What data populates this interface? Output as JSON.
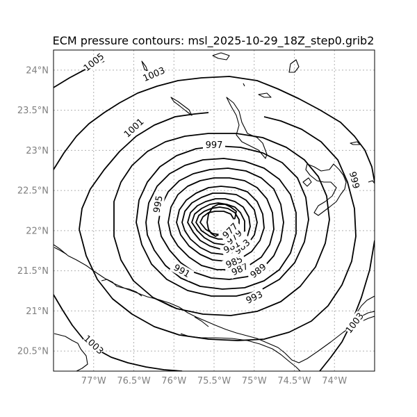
{
  "chart_data": {
    "type": "contour-map",
    "title": "ECM pressure contours: msl_2025-10-29_18Z_step0.grib2",
    "x_axis": {
      "range": [
        -77.5,
        -73.5
      ],
      "ticks": [
        -77,
        -76.5,
        -76,
        -75.5,
        -75,
        -74.5,
        -74
      ],
      "tick_labels": [
        "77°W",
        "76.5°W",
        "76°W",
        "75.5°W",
        "75°W",
        "74.5°W",
        "74°W"
      ]
    },
    "y_axis": {
      "range": [
        20.25,
        24.25
      ],
      "ticks": [
        20.5,
        21,
        21.5,
        22,
        22.5,
        23,
        23.5,
        24
      ],
      "tick_labels": [
        "20.5°N",
        "21°N",
        "21.5°N",
        "22°N",
        "22.5°N",
        "23°N",
        "23.5°N",
        "24°N"
      ]
    },
    "grid": true,
    "line_color": "#000000",
    "grid_color": "#b0b0b0",
    "center": {
      "lon": -75.5,
      "lat": 22.2
    },
    "contours": [
      {
        "level": "1005",
        "labels": [
          {
            "lon": -77.0,
            "lat": 24.1
          }
        ]
      },
      {
        "level": "1003",
        "labels": [
          {
            "lon": -76.25,
            "lat": 23.95
          },
          {
            "lon": -77.0,
            "lat": 20.58
          },
          {
            "lon": -73.75,
            "lat": 20.85
          }
        ]
      },
      {
        "level": "1001",
        "labels": [
          {
            "lon": -76.5,
            "lat": 23.28
          }
        ]
      },
      {
        "level": "999",
        "labels": [
          {
            "lon": -73.75,
            "lat": 22.63
          }
        ]
      },
      {
        "level": "997",
        "labels": [
          {
            "lon": -75.5,
            "lat": 23.07
          }
        ]
      },
      {
        "level": "995",
        "labels": [
          {
            "lon": -76.2,
            "lat": 22.33
          }
        ]
      },
      {
        "level": "993",
        "labels": [
          {
            "lon": -75.0,
            "lat": 21.17
          }
        ]
      },
      {
        "level": "991",
        "labels": [
          {
            "lon": -75.9,
            "lat": 21.5
          }
        ]
      },
      {
        "level": "989",
        "labels": [
          {
            "lon": -74.95,
            "lat": 21.5
          }
        ]
      },
      {
        "level": "987",
        "labels": [
          {
            "lon": -75.18,
            "lat": 21.52
          }
        ]
      },
      {
        "level": "985",
        "labels": [
          {
            "lon": -75.25,
            "lat": 21.61
          }
        ]
      },
      {
        "level": "983",
        "labels": [
          {
            "lon": -75.15,
            "lat": 21.8
          }
        ]
      },
      {
        "level": "981",
        "labels": [
          {
            "lon": -75.28,
            "lat": 21.8
          }
        ]
      },
      {
        "level": "979",
        "labels": [
          {
            "lon": -75.25,
            "lat": 21.92
          }
        ]
      },
      {
        "level": "977",
        "labels": [
          {
            "lon": -75.3,
            "lat": 22.0
          }
        ]
      }
    ]
  }
}
